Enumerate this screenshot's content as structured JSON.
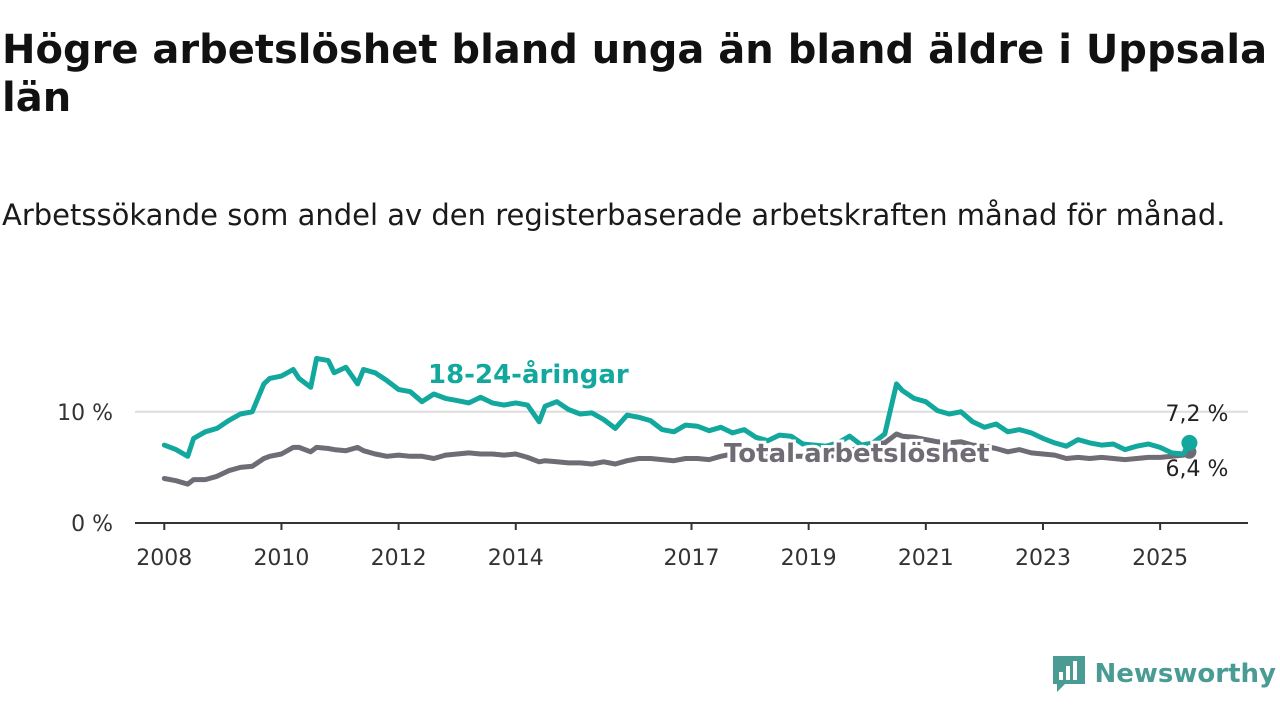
{
  "colors": {
    "youth": "#13a89e",
    "total": "#6f6c75",
    "axis": "#333333",
    "grid": "#dddddd",
    "brand": "#4a9b94"
  },
  "brand": {
    "name": "Newsworthy",
    "icon": "newsworthy-logo-icon"
  },
  "chart_data": {
    "type": "line",
    "title": "Högre arbetslöshet bland unga än bland äldre i Uppsala län",
    "subtitle": "Arbetssökande som andel av den registerbaserade arbetskraften månad för månad.",
    "xlabel": "",
    "ylabel": "",
    "xlim": [
      2007.5,
      2026.5
    ],
    "ylim": [
      0,
      16
    ],
    "y_ticks": [
      0,
      10
    ],
    "y_tick_labels": [
      "0 %",
      "10 %"
    ],
    "x_ticks": [
      "2008",
      "2010",
      "2012",
      "2014",
      "2017",
      "2019",
      "2021",
      "2023",
      "2025"
    ],
    "grid": "horizontal",
    "legend": "inline labels",
    "series": [
      {
        "name": "18-24-åringar",
        "end_label": "7,2 %",
        "x": [
          2008.0,
          2008.2,
          2008.4,
          2008.5,
          2008.7,
          2008.9,
          2009.1,
          2009.3,
          2009.5,
          2009.7,
          2009.8,
          2010.0,
          2010.2,
          2010.3,
          2010.5,
          2010.6,
          2010.8,
          2010.9,
          2011.1,
          2011.3,
          2011.4,
          2011.6,
          2011.8,
          2012.0,
          2012.2,
          2012.4,
          2012.6,
          2012.8,
          2013.0,
          2013.2,
          2013.4,
          2013.6,
          2013.8,
          2014.0,
          2014.2,
          2014.4,
          2014.5,
          2014.7,
          2014.9,
          2015.1,
          2015.3,
          2015.5,
          2015.7,
          2015.9,
          2016.1,
          2016.3,
          2016.5,
          2016.7,
          2016.9,
          2017.1,
          2017.3,
          2017.5,
          2017.7,
          2017.9,
          2018.1,
          2018.3,
          2018.5,
          2018.7,
          2018.9,
          2019.1,
          2019.3,
          2019.5,
          2019.7,
          2019.9,
          2020.1,
          2020.3,
          2020.5,
          2020.6,
          2020.8,
          2021.0,
          2021.2,
          2021.4,
          2021.6,
          2021.8,
          2022.0,
          2022.2,
          2022.4,
          2022.6,
          2022.8,
          2023.0,
          2023.2,
          2023.4,
          2023.6,
          2023.8,
          2024.0,
          2024.2,
          2024.4,
          2024.6,
          2024.8,
          2025.0,
          2025.2,
          2025.4,
          2025.5
        ],
        "values": [
          7.0,
          6.6,
          6.0,
          7.6,
          8.2,
          8.5,
          9.2,
          9.8,
          10.0,
          12.5,
          13.0,
          13.2,
          13.8,
          13.0,
          12.2,
          14.8,
          14.6,
          13.5,
          14.0,
          12.5,
          13.8,
          13.5,
          12.8,
          12.0,
          11.8,
          10.9,
          11.6,
          11.2,
          11.0,
          10.8,
          11.3,
          10.8,
          10.6,
          10.8,
          10.6,
          9.1,
          10.5,
          10.9,
          10.2,
          9.8,
          9.9,
          9.3,
          8.5,
          9.7,
          9.5,
          9.2,
          8.4,
          8.2,
          8.8,
          8.7,
          8.3,
          8.6,
          8.1,
          8.4,
          7.7,
          7.4,
          7.9,
          7.8,
          7.1,
          7.0,
          6.9,
          7.2,
          7.8,
          7.0,
          7.2,
          8.0,
          12.5,
          11.9,
          11.2,
          10.9,
          10.1,
          9.8,
          10.0,
          9.1,
          8.6,
          8.9,
          8.2,
          8.4,
          8.1,
          7.6,
          7.2,
          6.9,
          7.5,
          7.2,
          7.0,
          7.1,
          6.6,
          6.9,
          7.1,
          6.8,
          6.3,
          6.2,
          7.2
        ]
      },
      {
        "name": "Total arbetslöshet",
        "end_label": "6,4 %",
        "x": [
          2008.0,
          2008.2,
          2008.4,
          2008.5,
          2008.7,
          2008.9,
          2009.1,
          2009.3,
          2009.5,
          2009.7,
          2009.8,
          2010.0,
          2010.2,
          2010.3,
          2010.5,
          2010.6,
          2010.8,
          2010.9,
          2011.1,
          2011.3,
          2011.4,
          2011.6,
          2011.8,
          2012.0,
          2012.2,
          2012.4,
          2012.6,
          2012.8,
          2013.0,
          2013.2,
          2013.4,
          2013.6,
          2013.8,
          2014.0,
          2014.2,
          2014.4,
          2014.5,
          2014.7,
          2014.9,
          2015.1,
          2015.3,
          2015.5,
          2015.7,
          2015.9,
          2016.1,
          2016.3,
          2016.5,
          2016.7,
          2016.9,
          2017.1,
          2017.3,
          2017.5,
          2017.7,
          2017.9,
          2018.1,
          2018.3,
          2018.5,
          2018.7,
          2018.9,
          2019.1,
          2019.3,
          2019.5,
          2019.7,
          2019.9,
          2020.1,
          2020.3,
          2020.5,
          2020.6,
          2020.8,
          2021.0,
          2021.2,
          2021.4,
          2021.6,
          2021.8,
          2022.0,
          2022.2,
          2022.4,
          2022.6,
          2022.8,
          2023.0,
          2023.2,
          2023.4,
          2023.6,
          2023.8,
          2024.0,
          2024.2,
          2024.4,
          2024.6,
          2024.8,
          2025.0,
          2025.2,
          2025.4,
          2025.5
        ],
        "values": [
          4.0,
          3.8,
          3.5,
          3.9,
          3.9,
          4.2,
          4.7,
          5.0,
          5.1,
          5.8,
          6.0,
          6.2,
          6.8,
          6.8,
          6.4,
          6.8,
          6.7,
          6.6,
          6.5,
          6.8,
          6.5,
          6.2,
          6.0,
          6.1,
          6.0,
          6.0,
          5.8,
          6.1,
          6.2,
          6.3,
          6.2,
          6.2,
          6.1,
          6.2,
          5.9,
          5.5,
          5.6,
          5.5,
          5.4,
          5.4,
          5.3,
          5.5,
          5.3,
          5.6,
          5.8,
          5.8,
          5.7,
          5.6,
          5.8,
          5.8,
          5.7,
          6.0,
          6.2,
          6.3,
          6.2,
          6.0,
          6.1,
          6.0,
          6.0,
          6.1,
          6.1,
          6.0,
          6.5,
          6.8,
          7.1,
          7.2,
          8.0,
          7.8,
          7.7,
          7.5,
          7.3,
          7.2,
          7.3,
          7.0,
          6.9,
          6.7,
          6.4,
          6.6,
          6.3,
          6.2,
          6.1,
          5.8,
          5.9,
          5.8,
          5.9,
          5.8,
          5.7,
          5.8,
          5.9,
          5.9,
          6.0,
          6.1,
          6.4
        ]
      }
    ]
  }
}
